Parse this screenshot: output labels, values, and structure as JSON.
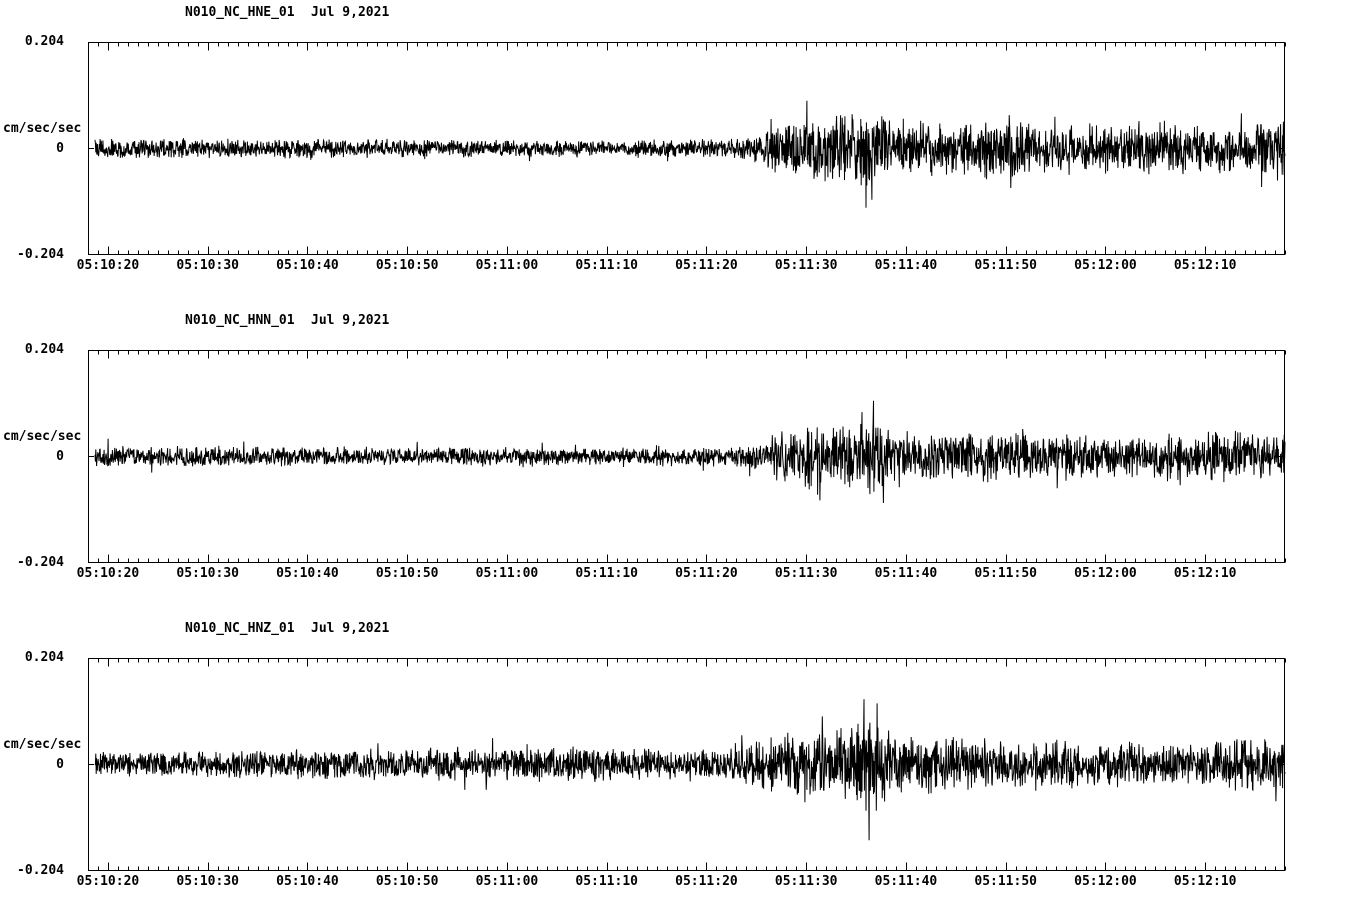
{
  "page": {
    "background": "#ffffff",
    "trace_color": "#000000",
    "axis_color": "#000000"
  },
  "chart_data": [
    {
      "type": "line",
      "title": "N010_NC_HNE_01",
      "date_label": "Jul 9,2021",
      "ylabel": "cm/sec/sec",
      "xlabel": "",
      "grid": false,
      "legend": "none",
      "ylim": [
        -0.204,
        0.204
      ],
      "ytick_labels": [
        "0.204",
        "0",
        "-0.204"
      ],
      "xtick_labels": [
        "05:10:20",
        "05:10:30",
        "05:10:40",
        "05:10:50",
        "05:11:00",
        "05:11:10",
        "05:11:20",
        "05:11:30",
        "05:11:40",
        "05:11:50",
        "05:12:00",
        "05:12:10"
      ],
      "xtick_t_sec": [
        2,
        12,
        22,
        32,
        42,
        52,
        62,
        72,
        82,
        92,
        102,
        112
      ],
      "time_window_sec": 120,
      "envelope_t_sec": [
        0,
        5,
        10,
        15,
        20,
        25,
        30,
        35,
        40,
        45,
        50,
        55,
        60,
        64,
        66,
        68,
        70,
        72,
        74,
        76,
        78,
        80,
        83,
        86,
        90,
        95,
        100,
        105,
        110,
        115,
        120
      ],
      "envelope_amp_cm_s2": [
        0.016,
        0.015,
        0.015,
        0.014,
        0.015,
        0.014,
        0.014,
        0.013,
        0.014,
        0.013,
        0.013,
        0.013,
        0.014,
        0.015,
        0.018,
        0.028,
        0.045,
        0.055,
        0.05,
        0.055,
        0.06,
        0.05,
        0.045,
        0.042,
        0.045,
        0.04,
        0.042,
        0.038,
        0.04,
        0.038,
        0.045
      ],
      "spikes": [
        {
          "t_sec": 78.6,
          "amp_cm_s2": -0.098
        }
      ]
    },
    {
      "type": "line",
      "title": "N010_NC_HNN_01",
      "date_label": "Jul 9,2021",
      "ylabel": "cm/sec/sec",
      "xlabel": "",
      "grid": false,
      "legend": "none",
      "ylim": [
        -0.204,
        0.204
      ],
      "ytick_labels": [
        "0.204",
        "0",
        "-0.204"
      ],
      "xtick_labels": [
        "05:10:20",
        "05:10:30",
        "05:10:40",
        "05:10:50",
        "05:11:00",
        "05:11:10",
        "05:11:20",
        "05:11:30",
        "05:11:40",
        "05:11:50",
        "05:12:00",
        "05:12:10"
      ],
      "xtick_t_sec": [
        2,
        12,
        22,
        32,
        42,
        52,
        62,
        72,
        82,
        92,
        102,
        112
      ],
      "time_window_sec": 120,
      "envelope_t_sec": [
        0,
        5,
        10,
        15,
        20,
        25,
        30,
        35,
        40,
        45,
        50,
        55,
        60,
        64,
        66,
        68,
        70,
        72,
        74,
        76,
        78,
        80,
        83,
        86,
        90,
        95,
        100,
        105,
        110,
        115,
        120
      ],
      "envelope_amp_cm_s2": [
        0.018,
        0.016,
        0.016,
        0.015,
        0.015,
        0.015,
        0.014,
        0.014,
        0.015,
        0.014,
        0.014,
        0.014,
        0.015,
        0.016,
        0.018,
        0.03,
        0.045,
        0.05,
        0.045,
        0.05,
        0.062,
        0.048,
        0.04,
        0.038,
        0.04,
        0.036,
        0.038,
        0.034,
        0.036,
        0.04,
        0.038
      ],
      "spikes": [
        {
          "t_sec": 77.6,
          "amp_cm_s2": 0.085
        },
        {
          "t_sec": 78.4,
          "amp_cm_s2": -0.072
        },
        {
          "t_sec": 109.5,
          "amp_cm_s2": -0.055
        }
      ]
    },
    {
      "type": "line",
      "title": "N010_NC_HNZ_01",
      "date_label": "Jul 9,2021",
      "ylabel": "cm/sec/sec",
      "xlabel": "",
      "grid": false,
      "legend": "none",
      "ylim": [
        -0.204,
        0.204
      ],
      "ytick_labels": [
        "0.204",
        "0",
        "-0.204"
      ],
      "xtick_labels": [
        "05:10:20",
        "05:10:30",
        "05:10:40",
        "05:10:50",
        "05:11:00",
        "05:11:10",
        "05:11:20",
        "05:11:30",
        "05:11:40",
        "05:11:50",
        "05:12:00",
        "05:12:10"
      ],
      "xtick_t_sec": [
        2,
        12,
        22,
        32,
        42,
        52,
        62,
        72,
        82,
        92,
        102,
        112
      ],
      "time_window_sec": 120,
      "envelope_t_sec": [
        0,
        5,
        10,
        15,
        20,
        25,
        30,
        34,
        37,
        40,
        45,
        50,
        55,
        60,
        64,
        66,
        68,
        70,
        72,
        74,
        76,
        78,
        80,
        83,
        86,
        90,
        95,
        100,
        105,
        110,
        115,
        120
      ],
      "envelope_amp_cm_s2": [
        0.02,
        0.018,
        0.02,
        0.022,
        0.022,
        0.024,
        0.022,
        0.024,
        0.034,
        0.026,
        0.026,
        0.028,
        0.024,
        0.022,
        0.024,
        0.03,
        0.042,
        0.048,
        0.05,
        0.052,
        0.06,
        0.072,
        0.05,
        0.044,
        0.04,
        0.038,
        0.036,
        0.035,
        0.034,
        0.036,
        0.038,
        0.042
      ],
      "spikes": [
        {
          "t_sec": 77.8,
          "amp_cm_s2": 0.125
        },
        {
          "t_sec": 78.3,
          "amp_cm_s2": -0.145
        }
      ]
    }
  ]
}
